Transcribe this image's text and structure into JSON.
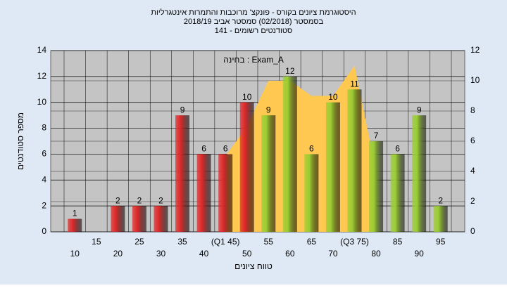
{
  "chart_data": {
    "type": "bar",
    "title": "היסטוגרמת ציונים בקורס - פונקצ' מרוכבות והתמרות אינטגרליות",
    "subtitle": "בסמסטר  (02/2018)  סמסטר אביב  2018/19",
    "subtitle2": "סטודנטים רשומים - 141",
    "annotation": "בחינה : Exam_A",
    "xlabel": "טווח ציונים",
    "ylabel": "מספר סטודנטים",
    "categories": [
      "10",
      "15",
      "20",
      "25",
      "30",
      "35",
      "40",
      "(Q1 45)",
      "50",
      "55",
      "60",
      "65",
      "70",
      "(Q3 75)",
      "80",
      "85",
      "90",
      "95"
    ],
    "values": [
      1,
      null,
      2,
      2,
      2,
      9,
      6,
      6,
      10,
      9,
      12,
      6,
      10,
      11,
      7,
      6,
      9,
      2
    ],
    "colors": [
      "#e02828",
      "#e02828",
      "#e02828",
      "#e02828",
      "#e02828",
      "#e02828",
      "#e02828",
      "#e02828",
      "#e02828",
      "#9acd32",
      "#9acd32",
      "#9acd32",
      "#9acd32",
      "#9acd32",
      "#9acd32",
      "#9acd32",
      "#9acd32",
      "#9acd32"
    ],
    "area": {
      "color": "#ffc850",
      "axis": "y2",
      "values": [
        null,
        null,
        null,
        null,
        null,
        null,
        null,
        5,
        7,
        10,
        10,
        9,
        9,
        11,
        4,
        null,
        null,
        null
      ]
    },
    "ylim": [
      0,
      14
    ],
    "yticks": [
      0,
      2,
      4,
      6,
      8,
      10,
      12,
      14
    ],
    "y2lim": [
      0,
      12
    ],
    "y2ticks": [
      0,
      2,
      4,
      6,
      8,
      10,
      12
    ],
    "grid": true
  }
}
